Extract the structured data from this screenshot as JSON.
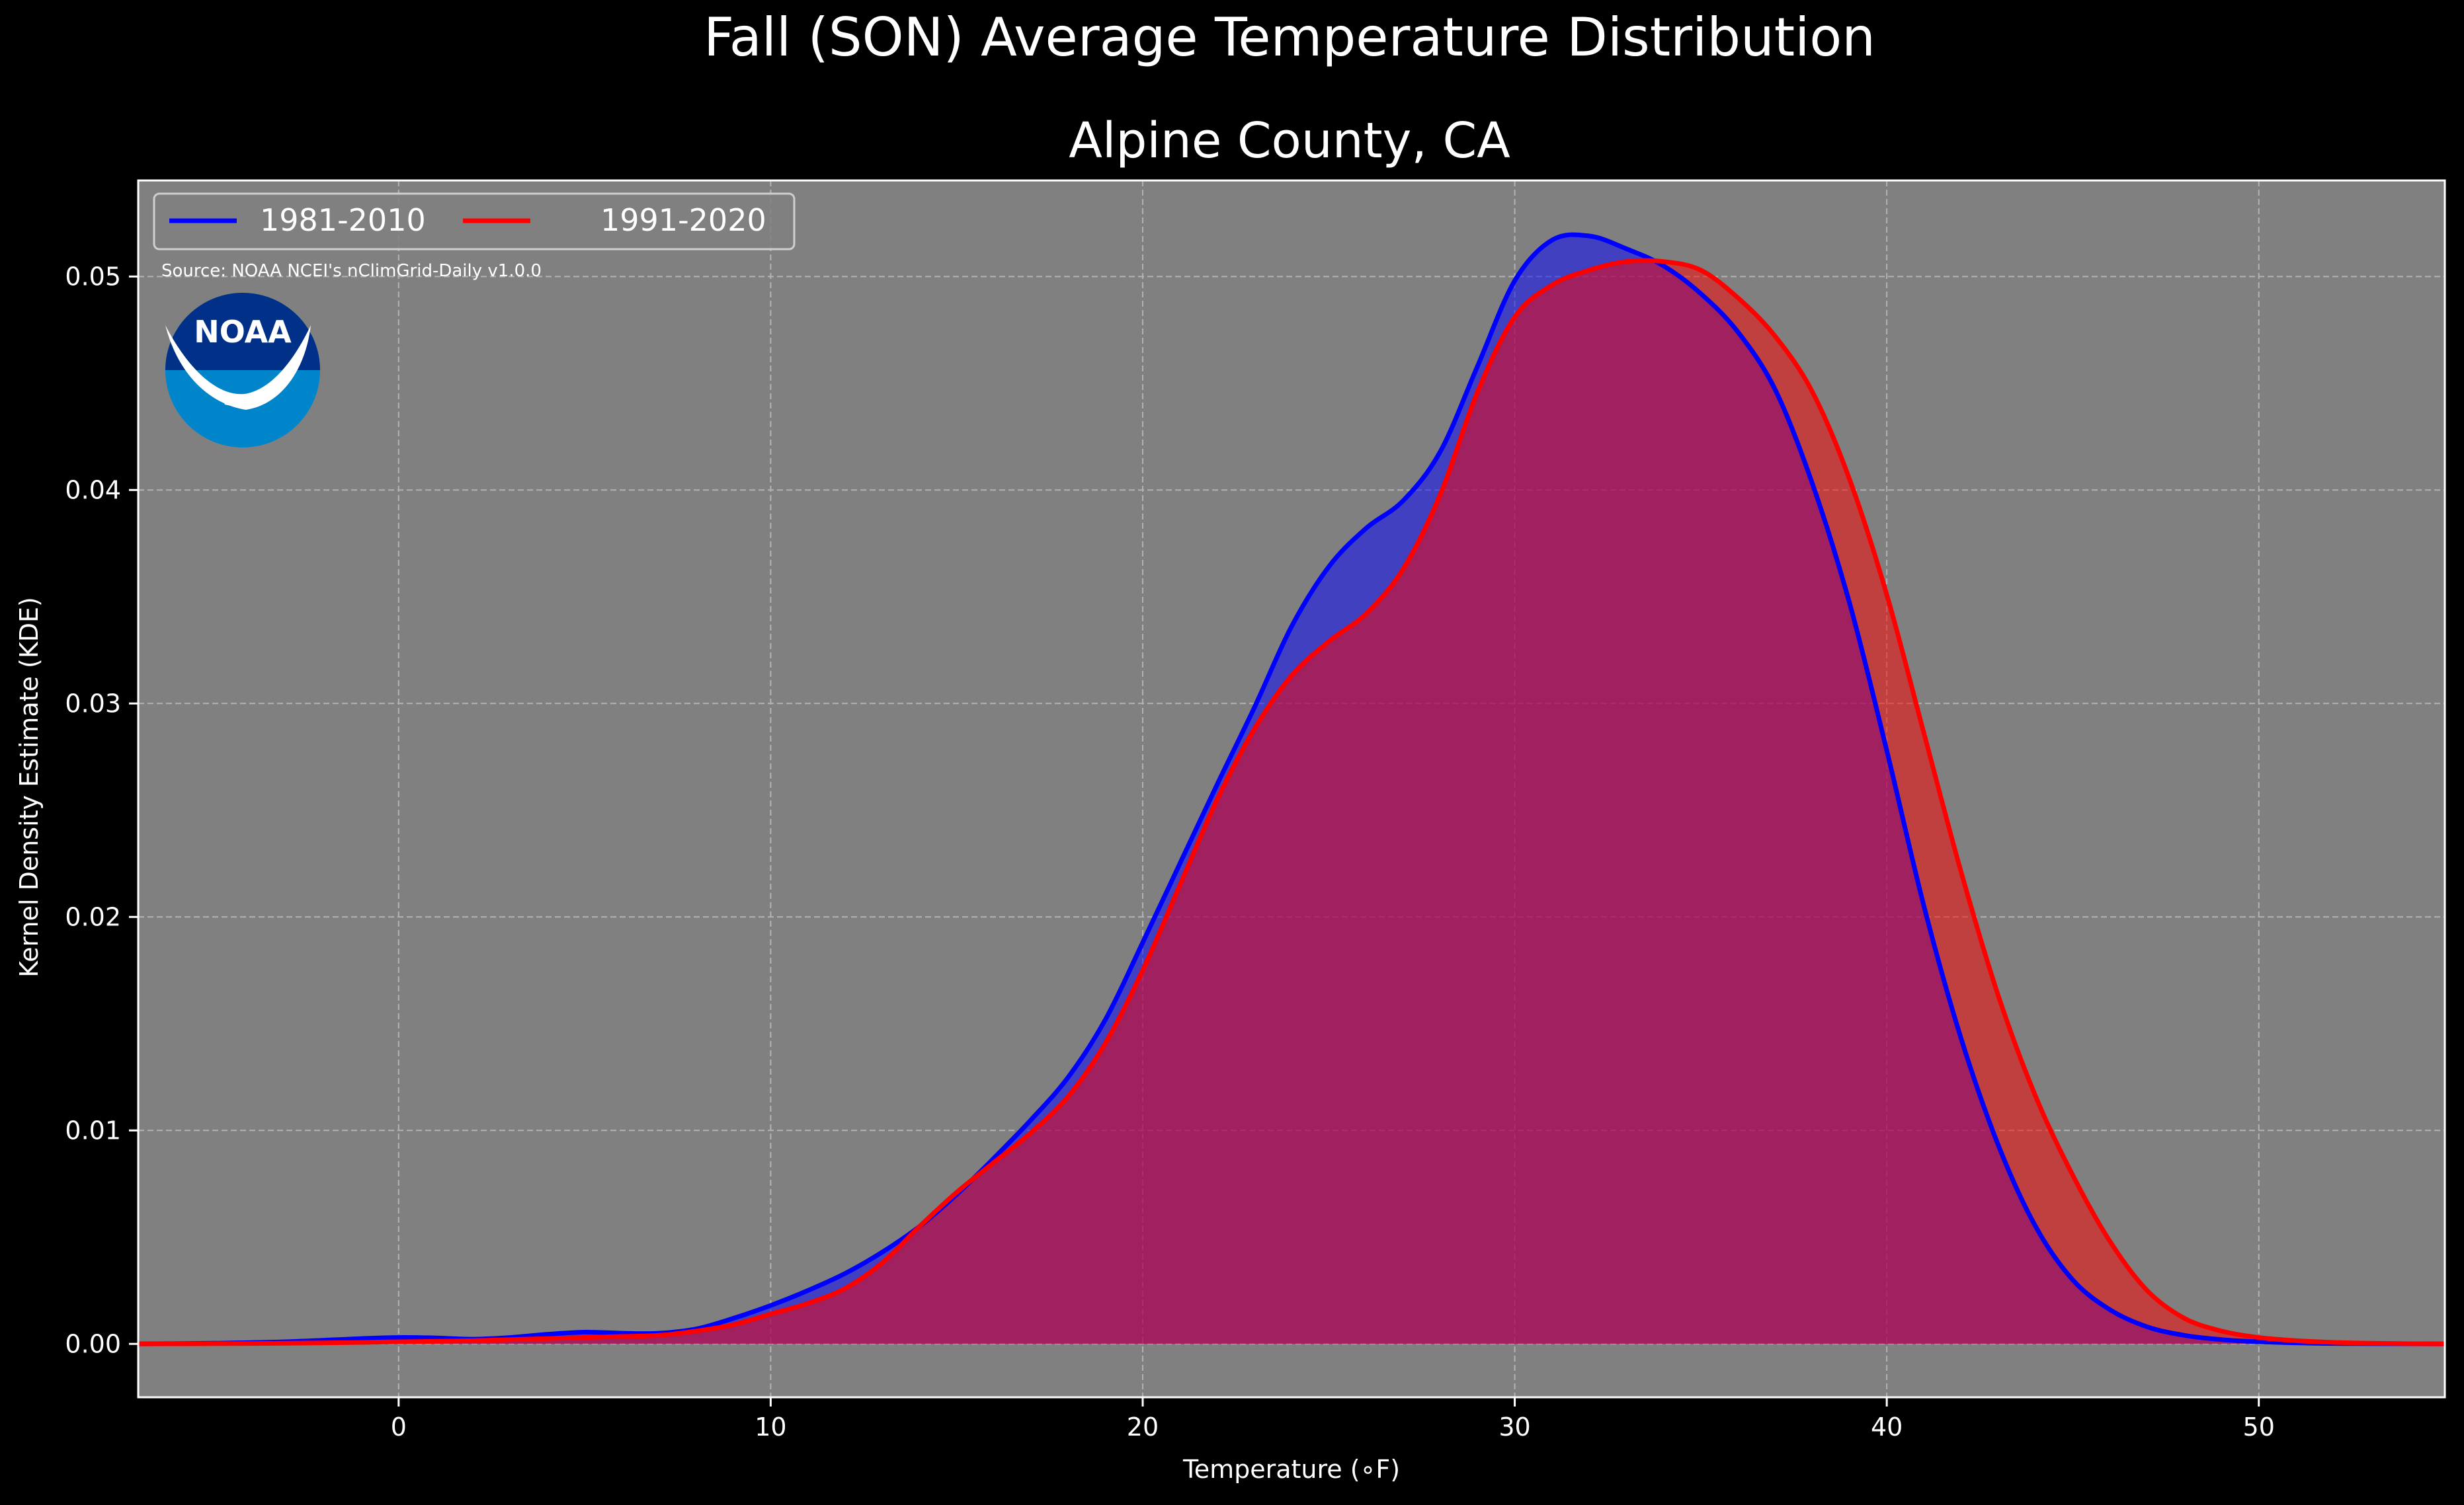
{
  "chart_data": {
    "type": "area",
    "title": "Fall (SON) Average Temperature Distribution",
    "subtitle": "Alpine County, CA",
    "xlabel": "Temperature (∘F)",
    "ylabel": "Kernel Density Estimate (KDE)",
    "xlim": [
      -7,
      55
    ],
    "ylim": [
      -0.0025,
      0.0545
    ],
    "xticks": [
      0,
      10,
      20,
      30,
      40,
      50
    ],
    "xtick_labels": [
      "0",
      "10",
      "20",
      "30",
      "40",
      "50"
    ],
    "yticks": [
      0,
      0.01,
      0.02,
      0.03,
      0.04,
      0.05
    ],
    "ytick_labels": [
      "0.00",
      "0.01",
      "0.02",
      "0.03",
      "0.04",
      "0.05"
    ],
    "grid": true,
    "legend_position": "top-left",
    "source_note": "Source: NOAA NCEI's nClimGrid-Daily v1.0.0",
    "logo_text": "NOAA",
    "background_color": "#808080",
    "series": [
      {
        "name": "1981-2010",
        "color": "#0000ff",
        "fill": "rgba(0,0,255,0.5)",
        "x": [
          -7,
          -5,
          -3,
          -1,
          0,
          1,
          2,
          3,
          4,
          5,
          6,
          7,
          8,
          9,
          10,
          11,
          12,
          13,
          14,
          15,
          16,
          17,
          18,
          19,
          20,
          21,
          22,
          23,
          24,
          25,
          26,
          27,
          28,
          29,
          30,
          31,
          32,
          33,
          34,
          35,
          36,
          37,
          38,
          39,
          40,
          41,
          42,
          43,
          44,
          45,
          46,
          47,
          48,
          49,
          50,
          51,
          52,
          53,
          55
        ],
        "y": [
          0,
          3e-05,
          0.0001,
          0.00025,
          0.0003,
          0.00028,
          0.00022,
          0.0003,
          0.00045,
          0.00055,
          0.0005,
          0.0005,
          0.0007,
          0.0012,
          0.0018,
          0.0025,
          0.0033,
          0.0043,
          0.0055,
          0.007,
          0.0087,
          0.0105,
          0.0125,
          0.0152,
          0.0188,
          0.0225,
          0.0262,
          0.0298,
          0.0336,
          0.0364,
          0.0382,
          0.0395,
          0.0418,
          0.0458,
          0.0498,
          0.0517,
          0.0519,
          0.0513,
          0.0505,
          0.0492,
          0.0474,
          0.0447,
          0.0403,
          0.0347,
          0.0278,
          0.0205,
          0.0143,
          0.0093,
          0.0055,
          0.003,
          0.0016,
          0.0008,
          0.0004,
          0.0002,
          0.0001,
          5e-05,
          2e-05,
          1e-05,
          0
        ]
      },
      {
        "name": "1991-2020",
        "color": "#ff0000",
        "fill": "rgba(255,0,0,0.5)",
        "x": [
          -7,
          -5,
          -3,
          -1,
          0,
          1,
          2,
          3,
          4,
          5,
          6,
          7,
          8,
          9,
          10,
          11,
          12,
          13,
          14,
          15,
          16,
          17,
          18,
          19,
          20,
          21,
          22,
          23,
          24,
          25,
          26,
          27,
          28,
          29,
          30,
          31,
          32,
          33,
          34,
          35,
          36,
          37,
          38,
          39,
          40,
          41,
          42,
          43,
          44,
          45,
          46,
          47,
          48,
          49,
          50,
          51,
          52,
          53,
          55
        ],
        "y": [
          0,
          1e-05,
          3e-05,
          7e-05,
          0.0001,
          0.00012,
          0.00015,
          0.0002,
          0.00025,
          0.0003,
          0.00035,
          0.0004,
          0.0006,
          0.0009,
          0.0014,
          0.0019,
          0.0026,
          0.0038,
          0.0055,
          0.0071,
          0.0085,
          0.0099,
          0.0116,
          0.0141,
          0.0175,
          0.0215,
          0.0255,
          0.0288,
          0.0313,
          0.0329,
          0.0342,
          0.0363,
          0.0398,
          0.0446,
          0.0481,
          0.0496,
          0.0503,
          0.0507,
          0.0507,
          0.0503,
          0.049,
          0.0472,
          0.0446,
          0.0405,
          0.0351,
          0.0286,
          0.0221,
          0.0163,
          0.0116,
          0.0079,
          0.0048,
          0.0025,
          0.0012,
          0.0006,
          0.0003,
          0.00015,
          7e-05,
          3e-05,
          0
        ]
      }
    ]
  }
}
